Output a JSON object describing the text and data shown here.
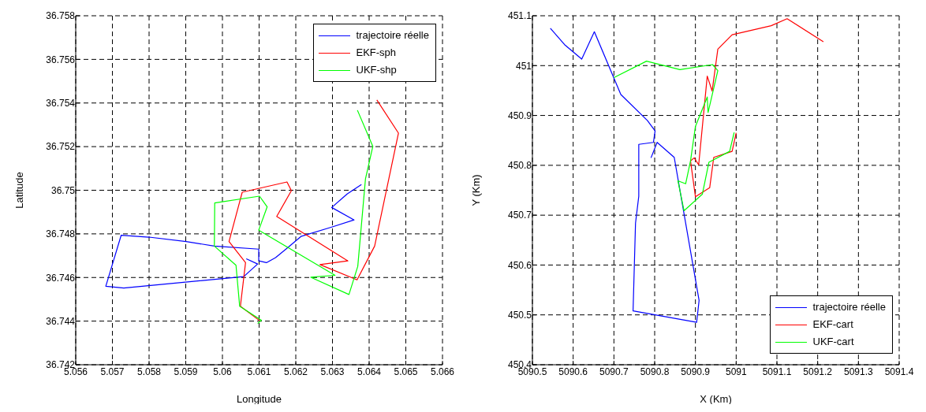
{
  "chart_data": [
    {
      "type": "line",
      "xlabel": "Longitude",
      "ylabel": "Latitude",
      "xlim": [
        5.056,
        5.066
      ],
      "xticks": [
        5.056,
        5.057,
        5.058,
        5.059,
        5.06,
        5.061,
        5.062,
        5.063,
        5.064,
        5.065,
        5.066
      ],
      "ylim": [
        36.742,
        36.758
      ],
      "yticks": [
        36.742,
        36.744,
        36.746,
        36.748,
        36.75,
        36.752,
        36.754,
        36.756,
        36.758
      ],
      "grid": true,
      "legend": "top right",
      "line_style": "solid",
      "marker": "none",
      "series": [
        {
          "name": "trajectoire réelle",
          "color": "#0000ff",
          "x": [
            5.06065,
            5.06096,
            5.06058,
            5.05731,
            5.05682,
            5.05724,
            5.058,
            5.05901,
            5.05978,
            5.06099,
            5.06099,
            5.0612,
            5.06145,
            5.06179,
            5.06214,
            5.06298,
            5.06359,
            5.06298,
            5.0634,
            5.06379
          ],
          "values": [
            36.74686,
            36.74662,
            36.74604,
            36.74552,
            36.7456,
            36.74794,
            36.74785,
            36.74765,
            36.74744,
            36.7473,
            36.74676,
            36.74668,
            36.74691,
            36.74738,
            36.74788,
            36.74831,
            36.74864,
            36.74921,
            36.74983,
            36.75026
          ]
        },
        {
          "name": "EKF-sph",
          "color": "#ff0000",
          "x": [
            5.06103,
            5.06049,
            5.06063,
            5.06018,
            5.06054,
            5.06176,
            5.06188,
            5.06148,
            5.06342,
            5.06266,
            5.06367,
            5.06415,
            5.0648,
            5.06421
          ],
          "values": [
            36.744,
            36.74468,
            36.74668,
            36.74765,
            36.74991,
            36.75038,
            36.74998,
            36.7488,
            36.74676,
            36.74659,
            36.74589,
            36.74744,
            36.75262,
            36.75414
          ]
        },
        {
          "name": "UKF-shp",
          "color": "#00ff00",
          "x": [
            5.06096,
            5.06106,
            5.06047,
            5.06037,
            5.05978,
            5.05979,
            5.06101,
            5.06122,
            5.06099,
            5.06307,
            5.06241,
            5.06345,
            5.06369,
            5.0639,
            5.0641,
            5.06368
          ],
          "values": [
            36.74389,
            36.74404,
            36.74468,
            36.74656,
            36.74744,
            36.74942,
            36.74973,
            36.74924,
            36.74817,
            36.7461,
            36.74601,
            36.74522,
            36.74651,
            36.75052,
            36.75201,
            36.75367
          ]
        }
      ]
    },
    {
      "type": "line",
      "xlabel": "X (Km)",
      "ylabel": "Y (Km)",
      "xlim": [
        5090.5,
        5091.4
      ],
      "xticks": [
        5090.5,
        5090.6,
        5090.7,
        5090.8,
        5090.9,
        5091,
        5091.1,
        5091.2,
        5091.3,
        5091.4
      ],
      "ylim": [
        450.4,
        451.1
      ],
      "yticks": [
        450.4,
        450.5,
        450.6,
        450.7,
        450.8,
        450.9,
        451,
        451.1
      ],
      "grid": true,
      "legend": "bottom right",
      "line_style": "solid",
      "marker": "none",
      "series": [
        {
          "name": "trajectoire réelle",
          "color": "#0000ff",
          "x": [
            5090.544,
            5090.579,
            5090.621,
            5090.652,
            5090.717,
            5090.782,
            5090.801,
            5090.797,
            5090.761,
            5090.761,
            5090.753,
            5090.747,
            5090.903,
            5090.909,
            5090.848,
            5090.806,
            5090.791
          ],
          "values": [
            451.075,
            451.042,
            451.013,
            451.068,
            450.942,
            450.89,
            450.869,
            450.846,
            450.842,
            450.738,
            450.684,
            450.508,
            450.485,
            450.529,
            450.816,
            450.846,
            450.815
          ]
        },
        {
          "name": "EKF-cart",
          "color": "#ff0000",
          "x": [
            5091.0,
            5090.99,
            5090.945,
            5090.935,
            5090.9,
            5090.888,
            5090.897,
            5090.908,
            5090.929,
            5090.941,
            5090.955,
            5090.99,
            5091.086,
            5091.125,
            5091.214
          ],
          "values": [
            450.865,
            450.828,
            450.816,
            450.755,
            450.737,
            450.809,
            450.815,
            450.801,
            450.979,
            450.949,
            451.033,
            451.062,
            451.08,
            451.094,
            451.048
          ]
        },
        {
          "name": "UKF-cart",
          "color": "#00ff00",
          "x": [
            5090.995,
            5090.984,
            5090.933,
            5090.917,
            5090.872,
            5090.857,
            5090.876,
            5090.888,
            5090.9,
            5090.929,
            5090.931,
            5090.955,
            5090.942,
            5090.862,
            5090.78,
            5090.7
          ],
          "values": [
            450.866,
            450.828,
            450.806,
            450.742,
            450.709,
            450.769,
            450.763,
            450.809,
            450.878,
            450.937,
            450.906,
            450.99,
            451.002,
            450.992,
            451.009,
            450.976
          ]
        }
      ]
    }
  ]
}
